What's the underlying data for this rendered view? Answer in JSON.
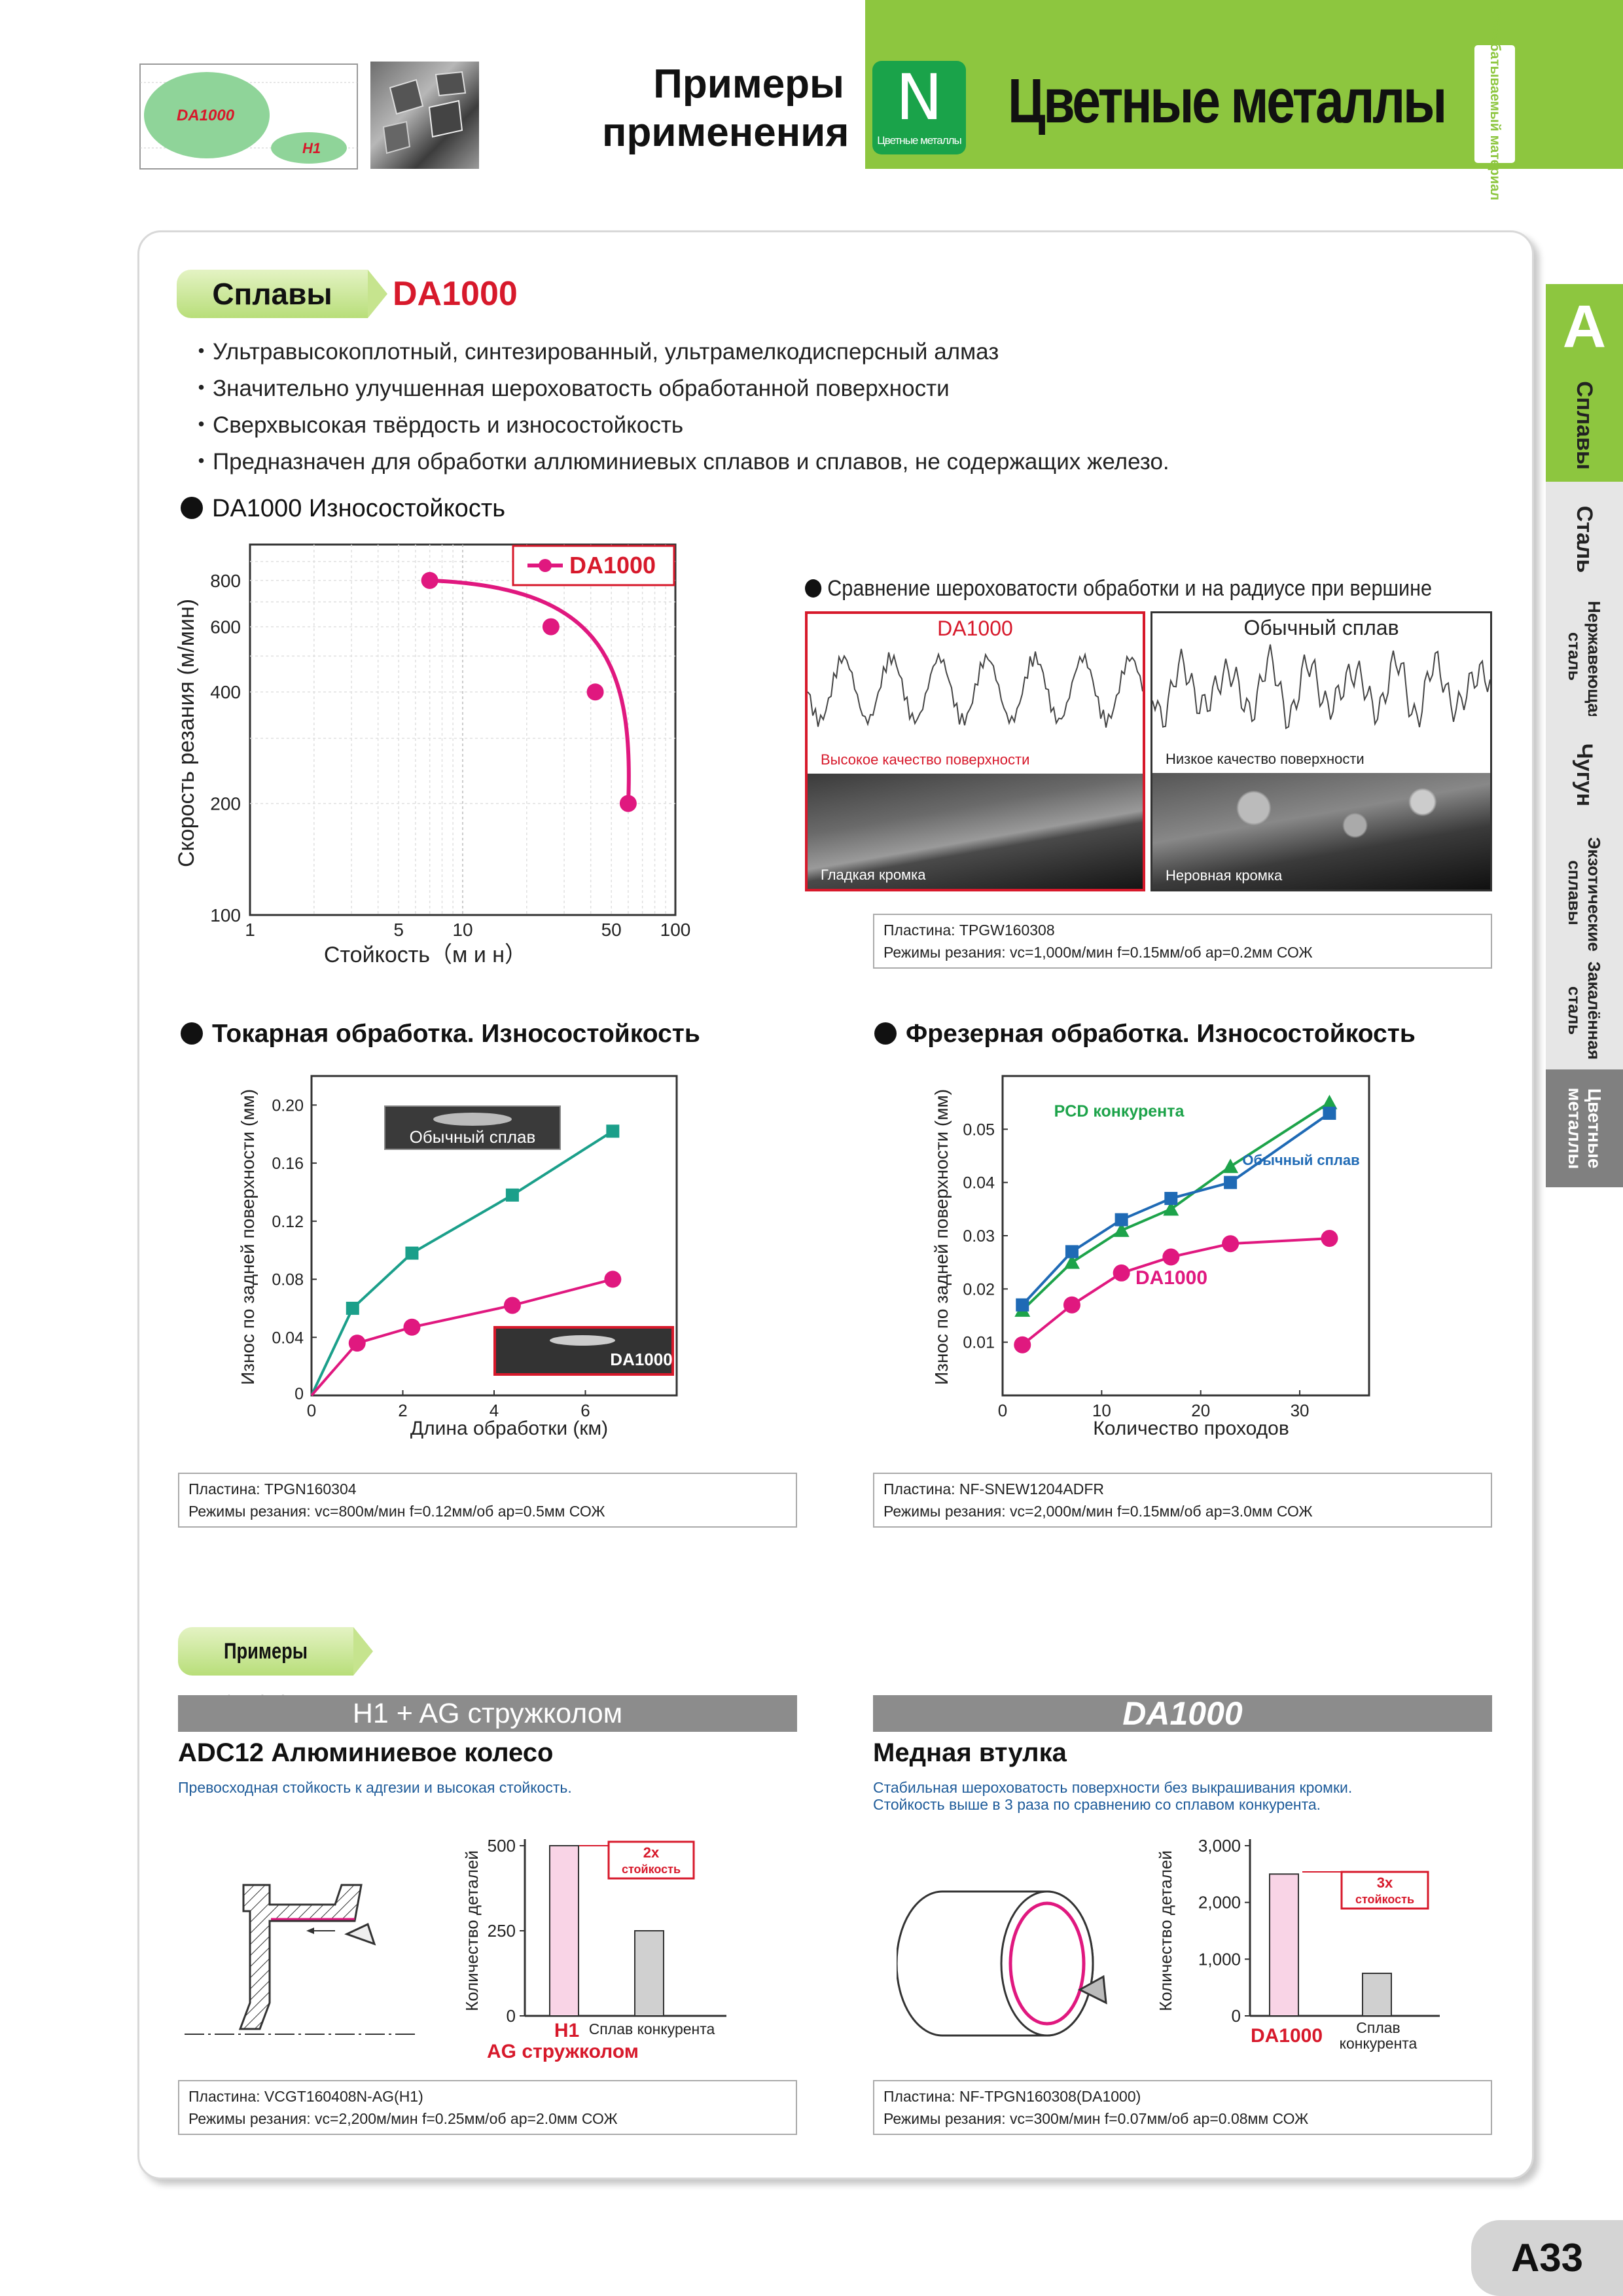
{
  "header": {
    "logo_labels": [
      "DA1000",
      "H1"
    ],
    "examples_title_line1": "Примеры",
    "examples_title_line2": "применения",
    "material_letter": "N",
    "material_sub": "Цветные металлы",
    "main_title": "Цветные металлы",
    "vertical_tab": "Обрабатываемый материал"
  },
  "side_tabs": [
    {
      "label": "A",
      "color": "#8dc63f"
    },
    {
      "label": "Сплавы",
      "color": "#8dc63f"
    },
    {
      "label": "Сталь"
    },
    {
      "label": "Нержавеющая сталь"
    },
    {
      "label": "Чугун"
    },
    {
      "label": "Экзотические сплавы"
    },
    {
      "label": "Закалённая сталь"
    },
    {
      "label": "Цветные металлы",
      "color": "#808080"
    }
  ],
  "section": {
    "tag": "Сплавы",
    "grade": "DA1000",
    "grade_color": "#d7192b",
    "bullets": [
      "Ультравысокоплотный, синтезированный, ультрамелкодисперсный алмаз",
      "Значительно улучшенная шероховатость обработанной поверхности",
      "Сверхвысокая твёрдость и износостойкость",
      "Предназначен для обработки аллюминиевых сплавов и сплавов, не содержащих железо."
    ]
  },
  "chart_data": [
    {
      "type": "line",
      "title": "DA1000 Износостойкость",
      "xlabel": "Стойкость（м и н）",
      "ylabel": "Скорость резания (м/мин)",
      "xscale": "log",
      "yscale": "log",
      "xlim": [
        1,
        100
      ],
      "ylim": [
        100,
        1000
      ],
      "x_ticks": [
        1,
        5,
        10,
        50,
        100
      ],
      "y_ticks": [
        100,
        200,
        400,
        600,
        800
      ],
      "legend_position": "top-right",
      "series": [
        {
          "name": "DA1000",
          "color": "#e0187f",
          "x": [
            7,
            26,
            42,
            60
          ],
          "y": [
            800,
            600,
            400,
            200
          ]
        }
      ]
    },
    {
      "type": "line",
      "title": "Токарная обработка. Износостойкость",
      "xlabel": "Длина обработки (км)",
      "ylabel": "Износ по задней поверхности (мм)",
      "xlim": [
        0,
        8
      ],
      "ylim": [
        0,
        0.22
      ],
      "x_ticks": [
        0,
        2,
        4,
        6
      ],
      "y_ticks": [
        0.04,
        0.08,
        0.12,
        0.16,
        0.2
      ],
      "series": [
        {
          "name": "Обычный сплав",
          "color": "#1b9f8a",
          "marker": "square",
          "x": [
            0,
            0.9,
            2.2,
            4.4,
            6.6
          ],
          "y": [
            0,
            0.06,
            0.098,
            0.138,
            0.182
          ]
        },
        {
          "name": "DA1000",
          "color": "#e0187f",
          "marker": "circle",
          "x": [
            0,
            1.0,
            2.2,
            4.4,
            6.6
          ],
          "y": [
            0,
            0.036,
            0.047,
            0.062,
            0.08
          ]
        }
      ]
    },
    {
      "type": "line",
      "title": "Фрезерная обработка. Износостойкость",
      "xlabel": "Количество проходов",
      "ylabel": "Износ по задней поверхности (мм)",
      "xlim": [
        0,
        37
      ],
      "ylim": [
        0,
        0.06
      ],
      "x_ticks": [
        0,
        10,
        20,
        30
      ],
      "y_ticks": [
        0.01,
        0.02,
        0.03,
        0.04,
        0.05
      ],
      "series": [
        {
          "name": "PCD конкурента",
          "color": "#1da34a",
          "marker": "triangle",
          "x": [
            2,
            7,
            12,
            17,
            23,
            33
          ],
          "y": [
            0.016,
            0.025,
            0.031,
            0.035,
            0.043,
            0.055
          ]
        },
        {
          "name": "Обычный сплав",
          "color": "#1f6ab5",
          "marker": "square",
          "x": [
            2,
            7,
            12,
            17,
            23,
            33
          ],
          "y": [
            0.017,
            0.027,
            0.033,
            0.037,
            0.04,
            0.053
          ]
        },
        {
          "name": "DA1000",
          "color": "#e0187f",
          "marker": "circle",
          "x": [
            2,
            7,
            12,
            17,
            23,
            33
          ],
          "y": [
            0.0095,
            0.017,
            0.023,
            0.026,
            0.0285,
            0.0295
          ]
        }
      ]
    },
    {
      "type": "bar",
      "ylabel": "Количество деталей",
      "ylim": [
        0,
        500
      ],
      "y_ticks": [
        0,
        250,
        500
      ],
      "categories": [
        "H1 AG стружколом",
        "Сплав конкурента"
      ],
      "values": [
        500,
        250
      ],
      "colors": [
        "#f9d4e6",
        "#d0d0d0"
      ],
      "annotation": "2x стойкость"
    },
    {
      "type": "bar",
      "ylabel": "Количество деталей",
      "ylim": [
        0,
        3000
      ],
      "y_ticks": [
        0,
        1000,
        2000,
        3000
      ],
      "y_tick_labels": [
        "0",
        "1,000",
        "2,000",
        "3,000"
      ],
      "categories": [
        "DA1000",
        "Сплав конкурента"
      ],
      "values": [
        2500,
        750
      ],
      "colors": [
        "#f9d4e6",
        "#d0d0d0"
      ],
      "annotation": "3x стойкость"
    }
  ],
  "chart1_legend": "DA1000",
  "roughness": {
    "title": "Сравнение шероховатости обработки и на радиусе при вершине",
    "left_label": "DA1000",
    "right_label": "Обычный сплав",
    "left_quality": "Высокое качество поверхности",
    "right_quality": "Низкое качество поверхности",
    "left_edge": "Гладкая кромка",
    "right_edge": "Неровная кромка",
    "insert": "Пластина: TPGW160308",
    "conditions": "Режимы резания: vc=1,000м/мин  f=0.15мм/об  ap=0.2мм  СОЖ"
  },
  "turning": {
    "label_conventional": "Обычный сплав",
    "label_da": "DA1000",
    "insert": "Пластина: TPGN160304",
    "conditions": "Режимы резания: vc=800м/мин  f=0.12мм/об  ap=0.5мм  СОЖ"
  },
  "milling": {
    "label_pcd": "PCD конкурента",
    "label_conventional": "Обычный сплав",
    "label_da": "DA1000",
    "insert": "Пластина: NF-SNEW1204ADFR",
    "conditions": "Режимы резания: vc=2,000м/мин  f=0.15мм/об  ap=3.0мм  СОЖ"
  },
  "applications": {
    "tag": "Примеры применения",
    "left": {
      "header": "H1 + AG стружколом",
      "title": "ADC12 Алюминиевое колесо",
      "desc": "Превосходная стойкость к адгезии и высокая стойкость.",
      "bar1_label_a": "H1",
      "bar1_label_b": "AG стружколом",
      "bar2_label": "Сплав конкурента",
      "mult": "2x",
      "mult_sub": "стойкость",
      "insert": "Пластина: VCGT160408N-AG(H1)",
      "conditions": "Режимы резания: vc=2,200м/мин  f=0.25мм/об  ap=2.0мм СОЖ"
    },
    "right": {
      "header": "DA1000",
      "title": "Медная втулка",
      "desc_line1": "Стабильная шероховатость поверхности без выкрашивания кромки.",
      "desc_line2": "Стойкость выше в 3 раза по сравнению со сплавом конкурента.",
      "bar1_label": "DA1000",
      "bar2_label_a": "Сплав",
      "bar2_label_b": "конкурента",
      "mult": "3x",
      "mult_sub": "стойкость",
      "insert": "Пластина: NF-TPGN160308(DA1000)",
      "conditions": "Режимы резания: vc=300м/мин  f=0.07мм/об  ap=0.08мм  СОЖ"
    }
  },
  "page_number": "A33"
}
